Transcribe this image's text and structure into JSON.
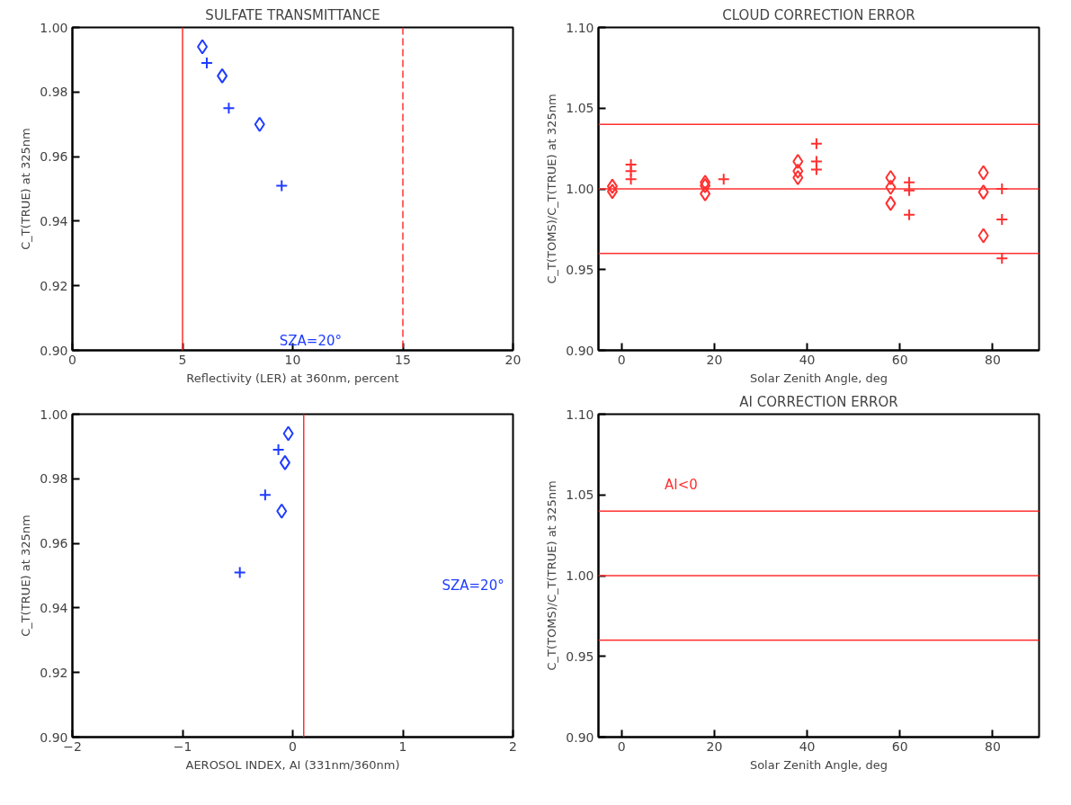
{
  "chart_data": [
    {
      "type": "scatter",
      "title": "SULFATE TRANSMITTANCE",
      "xlabel": "Reflectivity (LER) at 360nm, percent",
      "ylabel": "C_T(TRUE) at 325nm",
      "xlim": [
        0,
        20
      ],
      "xticks": [
        0,
        5,
        10,
        15,
        20
      ],
      "ylim": [
        0.9,
        1.0
      ],
      "yticks": [
        {
          "value": 0.9,
          "label": "0.90"
        },
        {
          "value": 0.92,
          "label": "0.92"
        },
        {
          "value": 0.94,
          "label": "0.94"
        },
        {
          "value": 0.96,
          "label": "0.96"
        },
        {
          "value": 0.98,
          "label": "0.98"
        },
        {
          "value": 1.0,
          "label": "1.00"
        }
      ],
      "grid": false,
      "series": [
        {
          "color": "#1f3cff",
          "marker": "diamond",
          "x": [
            5.9,
            6.8,
            8.5
          ],
          "values": [
            0.994,
            0.985,
            0.97
          ]
        },
        {
          "color": "#1f3cff",
          "marker": "cross",
          "x": [
            6.1,
            7.1,
            9.5
          ],
          "values": [
            0.989,
            0.975,
            0.951
          ]
        }
      ],
      "ref_lines": [
        {
          "axis": "x",
          "value": 5,
          "color": "#ff3030",
          "line_style": "solid"
        },
        {
          "axis": "x",
          "value": 15,
          "color": "#ff3030",
          "line_style": "dashed"
        }
      ],
      "annotations": [
        "SZA=20°"
      ]
    },
    {
      "type": "scatter",
      "title": "CLOUD CORRECTION ERROR",
      "xlabel": "Solar Zenith Angle, deg",
      "ylabel": "C_T(TOMS)/C_T(TRUE) at 325nm",
      "xlim": [
        -5,
        90
      ],
      "xticks": [
        0,
        20,
        40,
        60,
        80
      ],
      "ylim": [
        0.9,
        1.1
      ],
      "yticks": [
        {
          "value": 0.9,
          "label": "0.90"
        },
        {
          "value": 0.95,
          "label": "0.95"
        },
        {
          "value": 1.0,
          "label": "1.00"
        },
        {
          "value": 1.05,
          "label": "1.05"
        },
        {
          "value": 1.1,
          "label": "1.10"
        }
      ],
      "grid": false,
      "series": [
        {
          "color": "#ff3030",
          "marker": "diamond",
          "x": [
            -2,
            -2,
            18,
            18,
            18,
            38,
            38,
            38,
            58,
            58,
            58,
            78,
            78,
            78
          ],
          "values": [
            1.0016,
            0.9984,
            1.004,
            1.002,
            0.997,
            1.017,
            1.011,
            1.007,
            1.007,
            1.001,
            0.991,
            1.01,
            0.998,
            0.971
          ]
        },
        {
          "color": "#ff3030",
          "marker": "cross",
          "x": [
            2,
            2,
            2,
            22,
            42,
            42,
            42,
            62,
            62,
            62,
            82,
            82,
            82
          ],
          "values": [
            1.015,
            1.011,
            1.006,
            1.006,
            1.028,
            1.017,
            1.012,
            1.004,
            0.999,
            0.984,
            1.0,
            0.981,
            0.957
          ]
        }
      ],
      "ref_lines": [
        {
          "axis": "y",
          "value": 1.04,
          "color": "#ff3030"
        },
        {
          "axis": "y",
          "value": 1.0,
          "color": "#ff3030"
        },
        {
          "axis": "y",
          "value": 0.96,
          "color": "#ff3030"
        }
      ]
    },
    {
      "type": "scatter",
      "xlabel": "AEROSOL INDEX, AI (331nm/360nm)",
      "ylabel": "C_T(TRUE) at 325nm",
      "xlim": [
        -2,
        2
      ],
      "xticks": [
        {
          "value": -2,
          "label": "−2"
        },
        {
          "value": -1,
          "label": "−1"
        },
        0,
        1,
        2
      ],
      "ylim": [
        0.9,
        1.0
      ],
      "yticks": [
        {
          "value": 0.9,
          "label": "0.90"
        },
        {
          "value": 0.92,
          "label": "0.92"
        },
        {
          "value": 0.94,
          "label": "0.94"
        },
        {
          "value": 0.96,
          "label": "0.96"
        },
        {
          "value": 0.98,
          "label": "0.98"
        },
        {
          "value": 1.0,
          "label": "1.00"
        }
      ],
      "grid": false,
      "series": [
        {
          "color": "#1f3cff",
          "marker": "diamond",
          "x": [
            -0.04,
            -0.07,
            -0.1
          ],
          "values": [
            0.994,
            0.985,
            0.97
          ]
        },
        {
          "color": "#1f3cff",
          "marker": "cross",
          "x": [
            -0.13,
            -0.25,
            -0.48
          ],
          "values": [
            0.989,
            0.975,
            0.951
          ]
        }
      ],
      "ref_lines": [
        {
          "axis": "x",
          "value": 0.1,
          "color": "#ff3030"
        }
      ],
      "annotations": [
        "SZA=20°"
      ]
    },
    {
      "type": "scatter",
      "title": "AI CORRECTION ERROR",
      "xlabel": "Solar Zenith Angle, deg",
      "ylabel": "C_T(TOMS)/C_T(TRUE) at 325nm",
      "xlim": [
        -5,
        90
      ],
      "xticks": [
        0,
        20,
        40,
        60,
        80
      ],
      "ylim": [
        0.9,
        1.1
      ],
      "yticks": [
        {
          "value": 0.9,
          "label": "0.90"
        },
        {
          "value": 0.95,
          "label": "0.95"
        },
        {
          "value": 1.0,
          "label": "1.00"
        },
        {
          "value": 1.05,
          "label": "1.05"
        },
        {
          "value": 1.1,
          "label": "1.10"
        }
      ],
      "grid": false,
      "ref_lines": [
        {
          "axis": "y",
          "value": 1.04,
          "color": "#ff3030"
        },
        {
          "axis": "y",
          "value": 1.0,
          "color": "#ff3030"
        },
        {
          "axis": "y",
          "value": 0.96,
          "color": "#ff3030"
        }
      ],
      "annotations": [
        "AI<0"
      ]
    }
  ]
}
